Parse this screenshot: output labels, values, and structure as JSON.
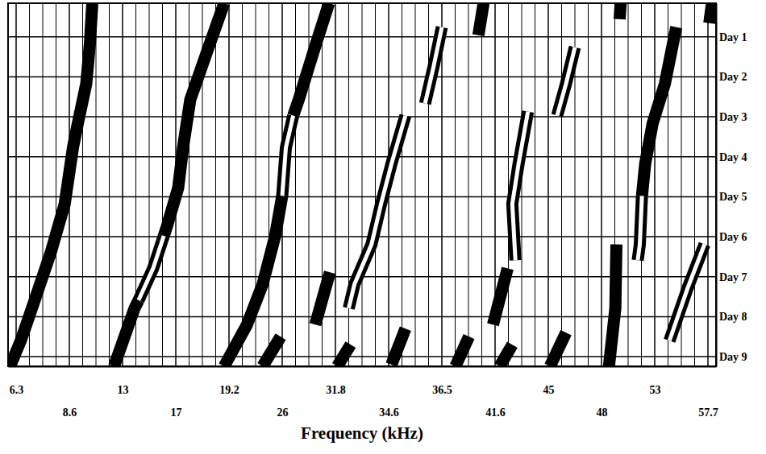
{
  "chart_data": {
    "type": "line",
    "x_label": "Frequency (kHz)",
    "xlim": [
      5.9,
      58.3
    ],
    "xticks": [
      6.3,
      8.6,
      13,
      17,
      19.2,
      26,
      31.8,
      34.6,
      36.5,
      41.6,
      45,
      48,
      53,
      57.7
    ],
    "ylim": [
      0.16,
      9.24
    ],
    "yticks": [
      {
        "value": 1,
        "label": "Day 1"
      },
      {
        "value": 2,
        "label": "Day 2"
      },
      {
        "value": 3,
        "label": "Day 3"
      },
      {
        "value": 4,
        "label": "Day 4"
      },
      {
        "value": 5,
        "label": "Day 5"
      },
      {
        "value": 6,
        "label": "Day 6"
      },
      {
        "value": 7,
        "label": "Day 7"
      },
      {
        "value": 8,
        "label": "Day 8"
      },
      {
        "value": 9,
        "label": "Day 9"
      }
    ],
    "grid": true,
    "series": [
      {
        "color": "#000000",
        "line_style": "solid",
        "x": [
          10.5,
          10.3,
          10.0,
          9.3,
          8.9,
          8.4,
          7.8,
          7.1,
          6.5,
          6.0
        ],
        "values": [
          0.16,
          1.16,
          2.17,
          3.17,
          3.77,
          5.18,
          6.39,
          7.59,
          8.6,
          9.24
        ]
      },
      {
        "color": "#000000",
        "line_style": "solid",
        "x": [
          19.0,
          18.3,
          17.6,
          17.3,
          17.1,
          16.3,
          16.1
        ],
        "values": [
          0.16,
          1.36,
          2.57,
          3.77,
          4.78,
          5.78,
          5.98
        ]
      },
      {
        "color": "#000000",
        "line_style": "hollow",
        "x": [
          16.1,
          15.3,
          14.2
        ],
        "values": [
          5.98,
          6.79,
          7.59
        ]
      },
      {
        "color": "#000000",
        "line_style": "solid",
        "x": [
          14.2,
          13.9,
          12.3
        ],
        "values": [
          7.59,
          7.79,
          9.24
        ]
      },
      {
        "color": "#000000",
        "line_style": "solid",
        "x": [
          31.1,
          29.7,
          27.8,
          27.2
        ],
        "values": [
          0.16,
          1.16,
          2.57,
          2.97
        ]
      },
      {
        "color": "#000000",
        "line_style": "hollow",
        "x": [
          27.2,
          26.4,
          26.0
        ],
        "values": [
          2.97,
          3.77,
          4.98
        ]
      },
      {
        "color": "#000000",
        "line_style": "solid",
        "x": [
          26.0,
          25.1,
          23.5,
          21.5,
          19.0
        ],
        "values": [
          4.98,
          5.98,
          7.19,
          8.2,
          9.24
        ]
      },
      {
        "color": "#000000",
        "line_style": "hollow",
        "x": [
          35.2,
          34.7,
          34.2,
          33.7,
          32.8,
          32.5
        ],
        "values": [
          2.97,
          4.18,
          5.18,
          6.19,
          7.19,
          7.79
        ]
      },
      {
        "color": "#000000",
        "line_style": "hollow",
        "x": [
          36.5,
          36.2,
          35.9
        ],
        "values": [
          0.76,
          1.76,
          2.67
        ]
      },
      {
        "color": "#000000",
        "line_style": "solid",
        "x": [
          31.2,
          29.6
        ],
        "values": [
          6.89,
          8.2
        ]
      },
      {
        "color": "#000000",
        "line_style": "solid",
        "x": [
          25.8,
          23.5
        ],
        "values": [
          8.5,
          9.24
        ]
      },
      {
        "color": "#000000",
        "line_style": "solid",
        "x": [
          35.2,
          34.7
        ],
        "values": [
          8.3,
          9.2
        ]
      },
      {
        "color": "#000000",
        "line_style": "solid",
        "x": [
          32.6,
          31.9
        ],
        "values": [
          8.7,
          9.24
        ]
      },
      {
        "color": "#000000",
        "line_style": "solid",
        "x": [
          40.5,
          40.0
        ],
        "values": [
          0.16,
          0.96
        ]
      },
      {
        "color": "#000000",
        "line_style": "hollow",
        "x": [
          43.7,
          43.1,
          42.7,
          42.9
        ],
        "values": [
          2.87,
          4.18,
          5.18,
          6.59
        ]
      },
      {
        "color": "#000000",
        "line_style": "hollow",
        "x": [
          46.5,
          46.0,
          45.5
        ],
        "values": [
          1.26,
          2.17,
          2.97
        ]
      },
      {
        "color": "#000000",
        "line_style": "solid",
        "x": [
          42.4,
          41.4
        ],
        "values": [
          6.79,
          8.2
        ]
      },
      {
        "color": "#000000",
        "line_style": "solid",
        "x": [
          42.7,
          41.9
        ],
        "values": [
          8.7,
          9.24
        ]
      },
      {
        "color": "#000000",
        "line_style": "solid",
        "x": [
          39.1,
          37.8
        ],
        "values": [
          8.5,
          9.24
        ]
      },
      {
        "color": "#000000",
        "line_style": "solid",
        "x": [
          46.0,
          45.1
        ],
        "values": [
          8.4,
          9.24
        ]
      },
      {
        "color": "#000000",
        "line_style": "solid",
        "x": [
          49.4,
          49.3,
          48.7
        ],
        "values": [
          6.19,
          7.79,
          9.24
        ]
      },
      {
        "color": "#000000",
        "line_style": "solid",
        "x": [
          49.8,
          49.7
        ],
        "values": [
          0.16,
          0.56
        ]
      },
      {
        "color": "#000000",
        "line_style": "solid",
        "x": [
          58.0,
          57.8
        ],
        "values": [
          0.16,
          0.66
        ]
      },
      {
        "color": "#000000",
        "line_style": "solid",
        "x": [
          54.9,
          53.9,
          52.8,
          52.1,
          51.8
        ],
        "values": [
          0.76,
          2.17,
          3.17,
          4.18,
          4.98
        ]
      },
      {
        "color": "#000000",
        "line_style": "hollow",
        "x": [
          51.8,
          51.6,
          51.4
        ],
        "values": [
          4.98,
          6.19,
          6.59
        ]
      },
      {
        "color": "#000000",
        "line_style": "hollow",
        "x": [
          57.4,
          55.9,
          54.3
        ],
        "values": [
          6.19,
          7.29,
          8.6
        ]
      }
    ]
  }
}
